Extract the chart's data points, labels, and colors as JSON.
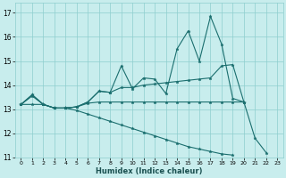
{
  "xlabel": "Humidex (Indice chaleur)",
  "bg_color": "#c8eded",
  "grid_color": "#8ecece",
  "line_color": "#1a6e6e",
  "xlim": [
    -0.5,
    23.5
  ],
  "ylim": [
    11.0,
    17.4
  ],
  "yticks": [
    11,
    12,
    13,
    14,
    15,
    16,
    17
  ],
  "xticks": [
    0,
    1,
    2,
    3,
    4,
    5,
    6,
    7,
    8,
    9,
    10,
    11,
    12,
    13,
    14,
    15,
    16,
    17,
    18,
    19,
    20,
    21,
    22,
    23
  ],
  "series": [
    {
      "x": [
        0,
        1,
        2,
        3,
        4,
        5,
        6,
        7,
        8,
        9,
        10,
        11,
        12,
        13,
        14,
        15,
        16,
        17,
        18,
        19,
        20,
        21,
        22
      ],
      "y": [
        13.2,
        13.6,
        13.2,
        13.05,
        13.05,
        13.1,
        13.3,
        13.75,
        13.7,
        14.8,
        13.85,
        14.3,
        14.25,
        13.65,
        15.5,
        16.25,
        15.0,
        16.85,
        15.7,
        13.45,
        13.3,
        11.8,
        11.2
      ]
    },
    {
      "x": [
        0,
        1,
        2,
        3,
        4,
        5,
        6,
        7,
        8,
        9,
        10,
        11,
        12,
        13,
        14,
        15,
        16,
        17,
        18,
        19,
        20
      ],
      "y": [
        13.2,
        13.6,
        13.2,
        13.05,
        13.05,
        13.1,
        13.3,
        13.75,
        13.7,
        13.9,
        13.9,
        14.0,
        14.05,
        14.1,
        14.15,
        14.2,
        14.25,
        14.3,
        14.8,
        14.85,
        13.3
      ]
    },
    {
      "x": [
        0,
        1,
        2,
        3,
        4,
        5,
        6,
        7,
        8,
        9,
        10,
        11,
        12,
        13,
        14,
        15,
        16,
        17,
        18,
        19,
        20
      ],
      "y": [
        13.2,
        13.55,
        13.2,
        13.05,
        13.05,
        13.1,
        13.25,
        13.3,
        13.3,
        13.3,
        13.3,
        13.3,
        13.3,
        13.3,
        13.3,
        13.3,
        13.3,
        13.3,
        13.3,
        13.3,
        13.3
      ]
    },
    {
      "x": [
        0,
        1,
        2,
        3,
        4,
        5,
        6,
        7,
        8,
        9,
        10,
        11,
        12,
        13,
        14,
        15,
        16,
        17,
        18,
        19
      ],
      "y": [
        13.2,
        13.2,
        13.2,
        13.05,
        13.05,
        12.95,
        12.8,
        12.65,
        12.5,
        12.35,
        12.2,
        12.05,
        11.9,
        11.75,
        11.6,
        11.45,
        11.35,
        11.25,
        11.15,
        11.1
      ]
    }
  ]
}
